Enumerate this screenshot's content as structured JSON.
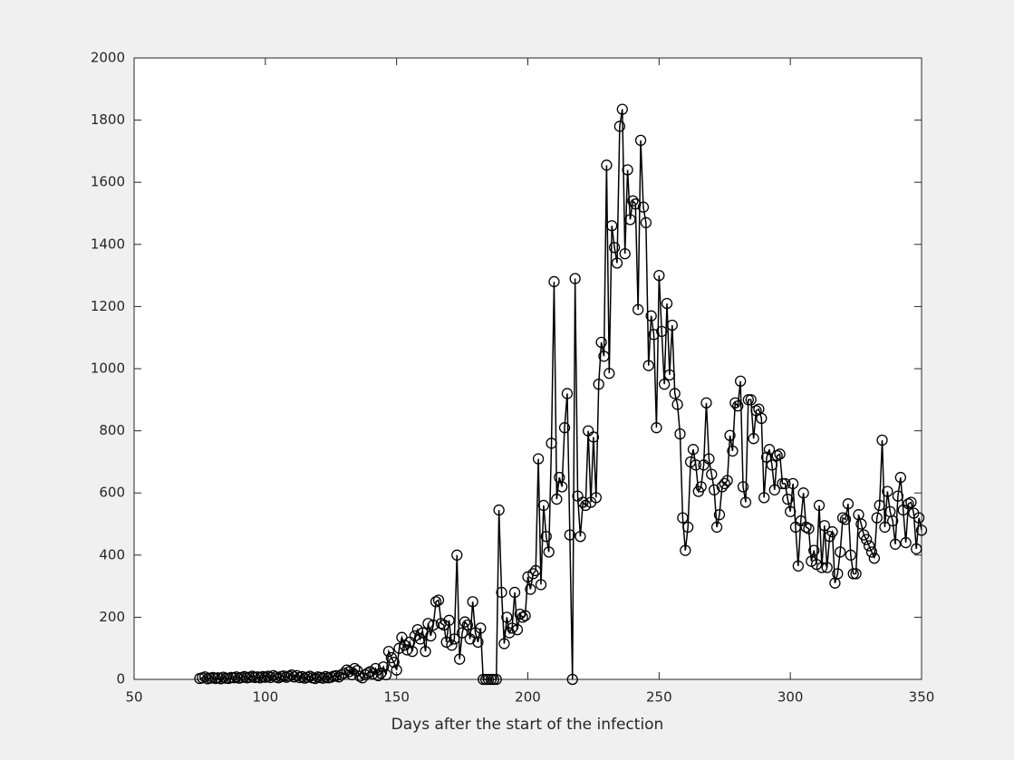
{
  "chart_data": {
    "type": "line",
    "xlabel": "Days after the start of the infection",
    "x": [
      75,
      76,
      77,
      78,
      79,
      80,
      81,
      82,
      83,
      84,
      85,
      86,
      87,
      88,
      89,
      90,
      91,
      92,
      93,
      94,
      95,
      96,
      97,
      98,
      99,
      100,
      101,
      102,
      103,
      104,
      105,
      106,
      107,
      108,
      109,
      110,
      111,
      112,
      113,
      114,
      115,
      116,
      117,
      118,
      119,
      120,
      121,
      122,
      123,
      124,
      125,
      126,
      127,
      128,
      129,
      130,
      131,
      132,
      133,
      134,
      135,
      136,
      137,
      138,
      139,
      140,
      141,
      142,
      143,
      144,
      145,
      146,
      147,
      148,
      149,
      150,
      151,
      152,
      153,
      154,
      155,
      156,
      157,
      158,
      159,
      160,
      161,
      162,
      163,
      164,
      165,
      166,
      167,
      168,
      169,
      170,
      171,
      172,
      173,
      174,
      175,
      176,
      177,
      178,
      179,
      180,
      181,
      182,
      183,
      184,
      185,
      186,
      187,
      188,
      189,
      190,
      191,
      192,
      193,
      194,
      195,
      196,
      197,
      198,
      199,
      200,
      201,
      202,
      203,
      204,
      205,
      206,
      207,
      208,
      209,
      210,
      211,
      212,
      213,
      214,
      215,
      216,
      217,
      218,
      219,
      220,
      221,
      222,
      223,
      224,
      225,
      226,
      227,
      228,
      229,
      230,
      231,
      232,
      233,
      234,
      235,
      236,
      237,
      238,
      239,
      240,
      241,
      242,
      243,
      244,
      245,
      246,
      247,
      248,
      249,
      250,
      251,
      252,
      253,
      254,
      255,
      256,
      257,
      258,
      259,
      260,
      261,
      262,
      263,
      264,
      265,
      266,
      267,
      268,
      269,
      270,
      271,
      272,
      273,
      274,
      275,
      276,
      277,
      278,
      279,
      280,
      281,
      282,
      283,
      284,
      285,
      286,
      287,
      288,
      289,
      290,
      291,
      292,
      293,
      294,
      295,
      296,
      297,
      298,
      299,
      300,
      301,
      302,
      303,
      304,
      305,
      306,
      307,
      308,
      309,
      310,
      311,
      312,
      313,
      314,
      315,
      316,
      317,
      318,
      319,
      320,
      321,
      322,
      323,
      324,
      325,
      326,
      327,
      328,
      329,
      330,
      331,
      332,
      333,
      334,
      335,
      336,
      337,
      338,
      339,
      340,
      341,
      342,
      343,
      344,
      345,
      346,
      347,
      348,
      349,
      350
    ],
    "values": [
      3,
      5,
      8,
      2,
      4,
      6,
      3,
      5,
      2,
      7,
      4,
      3,
      6,
      5,
      8,
      4,
      6,
      9,
      5,
      7,
      10,
      6,
      8,
      5,
      9,
      7,
      10,
      6,
      12,
      8,
      5,
      9,
      11,
      7,
      10,
      14,
      8,
      12,
      6,
      9,
      4,
      7,
      10,
      5,
      3,
      8,
      6,
      4,
      9,
      5,
      7,
      10,
      12,
      8,
      15,
      20,
      30,
      25,
      15,
      35,
      28,
      10,
      5,
      15,
      20,
      25,
      18,
      35,
      12,
      20,
      40,
      15,
      90,
      70,
      55,
      30,
      100,
      135,
      110,
      95,
      120,
      90,
      140,
      160,
      130,
      150,
      90,
      180,
      140,
      175,
      250,
      255,
      180,
      175,
      120,
      190,
      110,
      130,
      400,
      65,
      150,
      185,
      175,
      130,
      250,
      150,
      120,
      165,
      0,
      0,
      0,
      0,
      0,
      0,
      545,
      280,
      115,
      200,
      150,
      165,
      280,
      160,
      210,
      200,
      205,
      330,
      290,
      340,
      350,
      710,
      305,
      560,
      460,
      410,
      760,
      1280,
      580,
      650,
      620,
      810,
      920,
      465,
      0,
      1290,
      590,
      460,
      570,
      560,
      800,
      570,
      780,
      585,
      950,
      1085,
      1040,
      1655,
      985,
      1460,
      1390,
      1340,
      1780,
      1835,
      1370,
      1640,
      1480,
      1540,
      1530,
      1190,
      1735,
      1520,
      1470,
      1010,
      1170,
      1110,
      810,
      1300,
      1120,
      950,
      1210,
      980,
      1140,
      920,
      885,
      790,
      520,
      415,
      490,
      700,
      740,
      690,
      605,
      620,
      690,
      890,
      710,
      660,
      610,
      490,
      530,
      620,
      630,
      640,
      785,
      735,
      890,
      880,
      960,
      620,
      570,
      900,
      900,
      775,
      865,
      870,
      840,
      585,
      715,
      740,
      690,
      610,
      720,
      725,
      630,
      630,
      580,
      540,
      630,
      490,
      365,
      510,
      600,
      490,
      485,
      380,
      415,
      370,
      560,
      360,
      495,
      360,
      460,
      475,
      310,
      340,
      410,
      520,
      515,
      565,
      400,
      340,
      340,
      530,
      500,
      465,
      450,
      430,
      410,
      390,
      520,
      560,
      770,
      490,
      605,
      540,
      510,
      435,
      590,
      650,
      545,
      440,
      565,
      570,
      535,
      420,
      520,
      480
    ],
    "color": "#000000",
    "xlim": [
      50,
      350
    ],
    "xticks": [
      50,
      100,
      150,
      200,
      250,
      300,
      350
    ],
    "ylim": [
      0,
      2000
    ],
    "yticks": [
      0,
      200,
      400,
      600,
      800,
      1000,
      1200,
      1400,
      1600,
      1800,
      2000
    ],
    "grid": false
  }
}
